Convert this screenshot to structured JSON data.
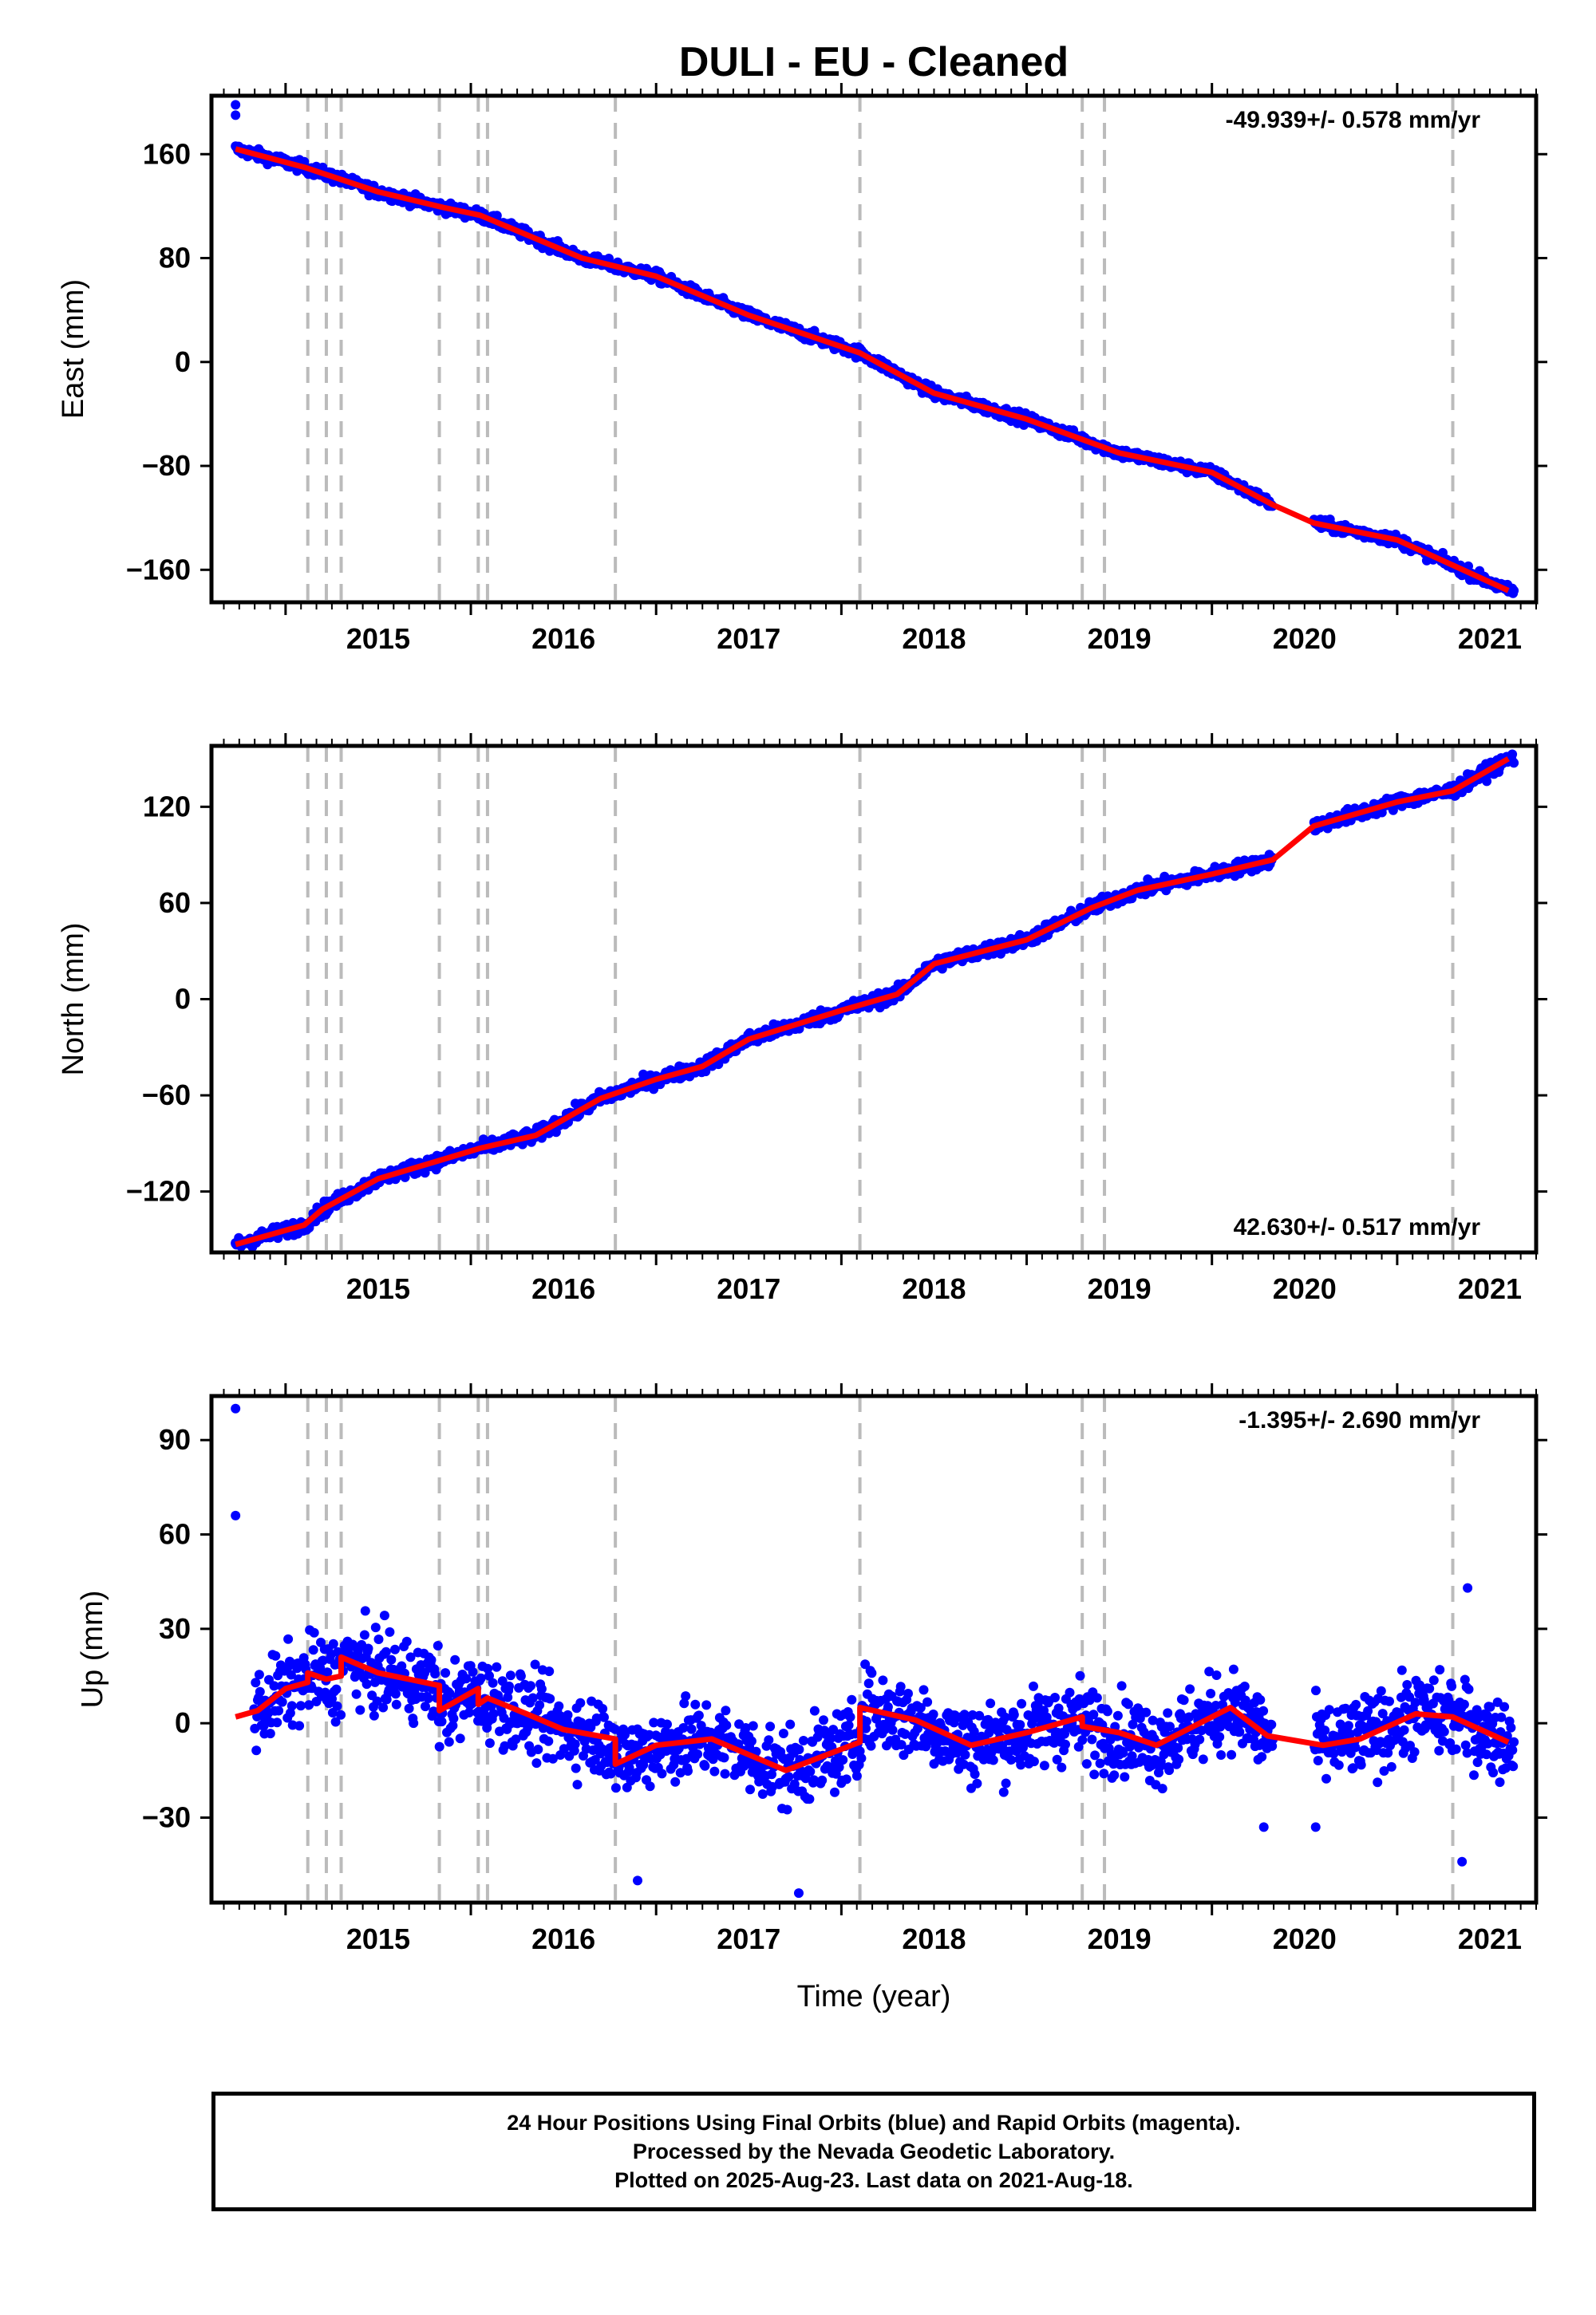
{
  "figure": {
    "title": "DULI  - EU - Cleaned",
    "xlabel": "Time (year)",
    "footer": [
      "24 Hour Positions Using Final Orbits (blue) and Rapid Orbits (magenta).",
      "Processed by the Nevada Geodetic Laboratory.",
      "Plotted on 2025-Aug-23. Last data on 2021-Aug-18."
    ],
    "colors": {
      "data": "#0000ff",
      "model": "#ff0000",
      "steps": "#bbbbbb",
      "frame": "#000000"
    }
  },
  "chart_data": [
    {
      "type": "scatter",
      "ylabel": "East (mm)",
      "rate_label": "-49.939+/- 0.578 mm/yr",
      "rate_position": "top-right",
      "xlim": [
        2014.6,
        2021.75
      ],
      "ylim": [
        -185,
        205
      ],
      "xticks": [
        2015,
        2016,
        2017,
        2018,
        2019,
        2020,
        2021
      ],
      "yticks": [
        -160,
        -80,
        0,
        80,
        160
      ],
      "ytick_labels": [
        "−160",
        "−80",
        "0",
        "80",
        "160"
      ],
      "step_epochs": [
        2015.12,
        2015.22,
        2015.3,
        2015.83,
        2016.04,
        2016.09,
        2016.78,
        2018.1,
        2019.3,
        2019.42,
        2021.3
      ],
      "model_line": {
        "x": [
          2014.73,
          2015.1,
          2015.5,
          2015.85,
          2016.05,
          2016.6,
          2017.0,
          2017.5,
          2018.1,
          2018.5,
          2019.0,
          2019.5,
          2020.0,
          2020.33,
          2020.55,
          2021.0,
          2021.6
        ],
        "y": [
          164,
          150,
          131,
          119,
          113,
          80,
          66,
          36,
          7,
          -24,
          -44,
          -70,
          -85,
          -110,
          -124,
          -137,
          -176
        ]
      },
      "outliers": [
        {
          "x": 2014.73,
          "y": 198
        },
        {
          "x": 2014.73,
          "y": 190
        }
      ],
      "data_gap": [
        2020.33,
        2020.55
      ],
      "data_range": [
        2014.73,
        2021.63
      ],
      "scatter_noise_mm": 3
    },
    {
      "type": "scatter",
      "ylabel": "North (mm)",
      "rate_label": "42.630+/- 0.517 mm/yr",
      "rate_position": "bottom-right",
      "xlim": [
        2014.6,
        2021.75
      ],
      "ylim": [
        -158,
        158
      ],
      "xticks": [
        2015,
        2016,
        2017,
        2018,
        2019,
        2020,
        2021
      ],
      "yticks": [
        -120,
        -60,
        0,
        60,
        120
      ],
      "ytick_labels": [
        "−120",
        "−60",
        "0",
        "60",
        "120"
      ],
      "step_epochs": [
        2015.12,
        2015.22,
        2015.3,
        2015.83,
        2016.04,
        2016.09,
        2016.78,
        2018.1,
        2019.3,
        2019.42,
        2021.3
      ],
      "model_line": {
        "x": [
          2014.73,
          2015.1,
          2015.2,
          2015.5,
          2015.85,
          2016.05,
          2016.35,
          2016.7,
          2017.0,
          2017.25,
          2017.5,
          2018.0,
          2018.3,
          2018.5,
          2019.0,
          2019.35,
          2019.6,
          2020.0,
          2020.33,
          2020.55,
          2021.0,
          2021.3,
          2021.6
        ],
        "y": [
          -153,
          -141,
          -131,
          -112,
          -100,
          -93,
          -85,
          -62,
          -50,
          -42,
          -25,
          -7,
          3,
          22,
          37,
          57,
          68,
          78,
          87,
          108,
          123,
          130,
          150
        ]
      },
      "outliers": [
        {
          "x": 2014.73,
          "y": -152
        }
      ],
      "data_gap": [
        2020.33,
        2020.55
      ],
      "data_range": [
        2014.73,
        2021.63
      ],
      "scatter_noise_mm": 3
    },
    {
      "type": "scatter",
      "ylabel": "Up (mm)",
      "rate_label": "-1.395+/- 2.690 mm/yr",
      "rate_position": "top-right",
      "xlim": [
        2014.6,
        2021.75
      ],
      "ylim": [
        -57,
        104
      ],
      "xticks": [
        2015,
        2016,
        2017,
        2018,
        2019,
        2020,
        2021
      ],
      "yticks": [
        -30,
        0,
        30,
        60,
        90
      ],
      "ytick_labels": [
        "−30",
        "0",
        "30",
        "60",
        "90"
      ],
      "step_epochs": [
        2015.12,
        2015.22,
        2015.3,
        2015.83,
        2016.04,
        2016.09,
        2016.78,
        2018.1,
        2019.3,
        2019.42,
        2021.3
      ],
      "model_line": {
        "x": [
          2014.73,
          2014.85,
          2015.0,
          2015.12,
          2015.12,
          2015.22,
          2015.3,
          2015.3,
          2015.5,
          2015.83,
          2015.83,
          2016.04,
          2016.04,
          2016.09,
          2016.09,
          2016.3,
          2016.5,
          2016.78,
          2016.78,
          2017.0,
          2017.3,
          2017.7,
          2018.1,
          2018.1,
          2018.4,
          2018.7,
          2019.0,
          2019.3,
          2019.3,
          2019.5,
          2019.7,
          2020.1,
          2020.3,
          2020.6,
          2020.8,
          2021.1,
          2021.3,
          2021.6
        ],
        "y": [
          2,
          4,
          11,
          13,
          16,
          14,
          15,
          21,
          16,
          12,
          4,
          11,
          6,
          8,
          8,
          3,
          -2,
          -5,
          -13,
          -7,
          -5,
          -15,
          -6,
          5,
          1,
          -7,
          -3,
          2,
          -1,
          -3,
          -7,
          5,
          -4,
          -7,
          -5,
          3,
          2,
          -6
        ]
      },
      "outliers": [
        {
          "x": 2014.73,
          "y": 100
        },
        {
          "x": 2014.73,
          "y": 66
        },
        {
          "x": 2021.38,
          "y": 43
        },
        {
          "x": 2021.35,
          "y": -44
        },
        {
          "x": 2020.28,
          "y": -33
        },
        {
          "x": 2017.77,
          "y": -54
        },
        {
          "x": 2016.9,
          "y": -50
        },
        {
          "x": 2020.56,
          "y": -33
        }
      ],
      "data_gap": [
        2020.33,
        2020.55
      ],
      "data_range": [
        2014.83,
        2021.63
      ],
      "scatter_noise_mm": 9
    }
  ]
}
